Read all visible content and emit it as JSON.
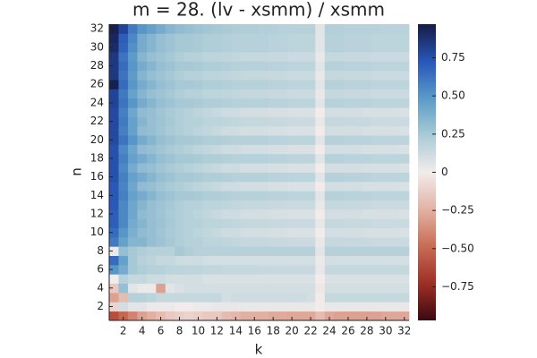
{
  "chart_data": {
    "type": "heatmap",
    "title": "m = 28. (lv - xsmm) / xsmm",
    "xlabel": "k",
    "ylabel": "n",
    "x": [
      1,
      2,
      3,
      4,
      5,
      6,
      7,
      8,
      9,
      10,
      11,
      12,
      13,
      14,
      15,
      16,
      17,
      18,
      19,
      20,
      21,
      22,
      23,
      24,
      25,
      26,
      27,
      28,
      29,
      30,
      31,
      32
    ],
    "y": [
      1,
      2,
      3,
      4,
      5,
      6,
      7,
      8,
      9,
      10,
      11,
      12,
      13,
      14,
      15,
      16,
      17,
      18,
      19,
      20,
      21,
      22,
      23,
      24,
      25,
      26,
      27,
      28,
      29,
      30,
      31,
      32
    ],
    "xlim": [
      0.5,
      32.5
    ],
    "ylim": [
      0.5,
      32.5
    ],
    "xticks": [
      2,
      4,
      6,
      8,
      10,
      12,
      14,
      16,
      18,
      20,
      22,
      24,
      26,
      28,
      30,
      32
    ],
    "yticks": [
      2,
      4,
      6,
      8,
      10,
      12,
      14,
      16,
      18,
      20,
      22,
      24,
      26,
      28,
      30,
      32
    ],
    "colorbar": {
      "lim": [
        -0.97,
        0.97
      ],
      "ticks": [
        {
          "value": -0.75,
          "label": "−0.75"
        },
        {
          "value": -0.5,
          "label": "−0.50"
        },
        {
          "value": -0.25,
          "label": "−0.25"
        },
        0,
        0.25,
        {
          "value": 0.5,
          "label": "0.50"
        },
        0.75
      ]
    },
    "colormap": [
      "#3c0911",
      "#9e2f25",
      "#c86c55",
      "#e2b2a4",
      "#f1eceb",
      "#a9cbd6",
      "#5a9ac8",
      "#2756b8",
      "#171b45"
    ],
    "values": [
      [
        -0.6,
        -0.5,
        -0.4,
        -0.3,
        -0.25,
        -0.2,
        -0.15,
        -0.12,
        -0.1,
        -0.12,
        -0.15,
        -0.15,
        -0.2,
        -0.22,
        -0.25,
        -0.25,
        -0.25,
        -0.27,
        -0.27,
        -0.28,
        -0.28,
        -0.28,
        -0.2,
        -0.28,
        -0.3,
        -0.3,
        -0.3,
        -0.3,
        -0.3,
        -0.28,
        -0.28,
        -0.28
      ],
      [
        -0.1,
        0.1,
        0.05,
        0.05,
        0.02,
        0.02,
        0.02,
        0.0,
        0.0,
        0.02,
        0.02,
        0.03,
        0.03,
        0.03,
        0.03,
        0.03,
        0.03,
        0.03,
        0.03,
        0.03,
        0.03,
        0.03,
        0.0,
        0.03,
        0.03,
        0.03,
        0.03,
        0.03,
        0.03,
        0.03,
        0.03,
        0.03
      ],
      [
        -0.3,
        -0.2,
        0.2,
        0.2,
        0.18,
        0.15,
        0.15,
        0.15,
        0.15,
        0.15,
        0.15,
        0.15,
        0.1,
        0.12,
        0.12,
        0.12,
        0.12,
        0.12,
        0.12,
        0.12,
        0.12,
        0.1,
        0.0,
        0.15,
        0.15,
        0.15,
        0.15,
        0.15,
        0.15,
        0.15,
        0.15,
        0.15
      ],
      [
        -0.15,
        0.3,
        0.05,
        0.02,
        0.02,
        -0.3,
        0.05,
        0.08,
        0.1,
        0.1,
        0.1,
        0.1,
        0.1,
        0.1,
        0.1,
        0.1,
        0.1,
        0.1,
        0.1,
        0.1,
        0.1,
        0.1,
        -0.02,
        0.1,
        0.1,
        0.1,
        0.1,
        0.1,
        0.1,
        0.1,
        0.1,
        0.1
      ],
      [
        0.0,
        0.2,
        0.15,
        0.15,
        0.12,
        0.12,
        0.1,
        0.1,
        0.1,
        0.1,
        0.08,
        0.08,
        0.08,
        0.08,
        0.08,
        0.08,
        0.08,
        0.08,
        0.08,
        0.08,
        0.08,
        0.08,
        0.0,
        0.08,
        0.08,
        0.08,
        0.08,
        0.08,
        0.08,
        0.08,
        0.08,
        0.08
      ],
      [
        0.5,
        0.4,
        0.25,
        0.22,
        0.2,
        0.2,
        0.18,
        0.18,
        0.17,
        0.17,
        0.16,
        0.16,
        0.15,
        0.15,
        0.15,
        0.15,
        0.14,
        0.14,
        0.14,
        0.14,
        0.14,
        0.14,
        0.03,
        0.15,
        0.15,
        0.15,
        0.15,
        0.15,
        0.15,
        0.15,
        0.15,
        0.15
      ],
      [
        0.65,
        0.45,
        0.25,
        0.2,
        0.18,
        0.15,
        0.15,
        0.12,
        0.12,
        0.12,
        0.1,
        0.1,
        0.1,
        0.1,
        0.1,
        0.1,
        0.1,
        0.1,
        0.1,
        0.1,
        0.1,
        0.1,
        0.02,
        0.1,
        0.1,
        0.1,
        0.1,
        0.1,
        0.1,
        0.1,
        0.1,
        0.1
      ],
      [
        0.02,
        0.3,
        0.25,
        0.22,
        0.2,
        0.2,
        0.2,
        0.25,
        0.22,
        0.2,
        0.2,
        0.2,
        0.2,
        0.2,
        0.2,
        0.2,
        0.2,
        0.2,
        0.2,
        0.2,
        0.2,
        0.2,
        0.05,
        0.2,
        0.2,
        0.2,
        0.2,
        0.2,
        0.2,
        0.2,
        0.2,
        0.2
      ],
      [
        0.6,
        0.45,
        0.35,
        0.35,
        0.3,
        0.28,
        0.25,
        0.22,
        0.2,
        0.2,
        0.18,
        0.18,
        0.17,
        0.16,
        0.15,
        0.15,
        0.15,
        0.14,
        0.14,
        0.13,
        0.13,
        0.13,
        0.03,
        0.15,
        0.15,
        0.14,
        0.14,
        0.14,
        0.13,
        0.13,
        0.13,
        0.13
      ],
      [
        0.65,
        0.5,
        0.38,
        0.32,
        0.3,
        0.27,
        0.24,
        0.22,
        0.2,
        0.18,
        0.16,
        0.14,
        0.12,
        0.12,
        0.1,
        0.1,
        0.1,
        0.09,
        0.09,
        0.08,
        0.08,
        0.08,
        0.0,
        0.1,
        0.1,
        0.1,
        0.1,
        0.09,
        0.09,
        0.09,
        0.09,
        0.08
      ],
      [
        0.7,
        0.55,
        0.4,
        0.35,
        0.3,
        0.28,
        0.25,
        0.22,
        0.2,
        0.2,
        0.18,
        0.18,
        0.17,
        0.16,
        0.15,
        0.15,
        0.15,
        0.14,
        0.14,
        0.13,
        0.13,
        0.13,
        0.03,
        0.15,
        0.15,
        0.14,
        0.14,
        0.14,
        0.13,
        0.13,
        0.13,
        0.13
      ],
      [
        0.7,
        0.55,
        0.42,
        0.32,
        0.3,
        0.27,
        0.24,
        0.22,
        0.2,
        0.18,
        0.16,
        0.14,
        0.12,
        0.12,
        0.1,
        0.1,
        0.1,
        0.09,
        0.09,
        0.08,
        0.08,
        0.08,
        0.0,
        0.1,
        0.1,
        0.1,
        0.1,
        0.09,
        0.09,
        0.09,
        0.09,
        0.08
      ],
      [
        0.72,
        0.55,
        0.42,
        0.35,
        0.3,
        0.28,
        0.25,
        0.22,
        0.2,
        0.2,
        0.18,
        0.18,
        0.17,
        0.16,
        0.15,
        0.15,
        0.15,
        0.14,
        0.14,
        0.13,
        0.13,
        0.13,
        0.03,
        0.15,
        0.15,
        0.14,
        0.14,
        0.14,
        0.13,
        0.13,
        0.13,
        0.13
      ],
      [
        0.72,
        0.58,
        0.45,
        0.4,
        0.35,
        0.3,
        0.28,
        0.25,
        0.25,
        0.24,
        0.22,
        0.22,
        0.21,
        0.2,
        0.2,
        0.2,
        0.2,
        0.19,
        0.19,
        0.18,
        0.18,
        0.18,
        0.05,
        0.2,
        0.2,
        0.19,
        0.19,
        0.19,
        0.18,
        0.18,
        0.18,
        0.18
      ],
      [
        0.72,
        0.56,
        0.42,
        0.32,
        0.3,
        0.27,
        0.24,
        0.22,
        0.2,
        0.18,
        0.16,
        0.14,
        0.12,
        0.12,
        0.1,
        0.1,
        0.1,
        0.09,
        0.09,
        0.08,
        0.08,
        0.08,
        0.0,
        0.1,
        0.1,
        0.1,
        0.1,
        0.09,
        0.09,
        0.09,
        0.09,
        0.08
      ],
      [
        0.75,
        0.58,
        0.45,
        0.4,
        0.35,
        0.3,
        0.28,
        0.25,
        0.25,
        0.24,
        0.22,
        0.22,
        0.21,
        0.2,
        0.2,
        0.2,
        0.2,
        0.19,
        0.19,
        0.18,
        0.18,
        0.18,
        0.05,
        0.2,
        0.2,
        0.19,
        0.19,
        0.19,
        0.18,
        0.18,
        0.18,
        0.18
      ],
      [
        0.75,
        0.55,
        0.4,
        0.32,
        0.3,
        0.27,
        0.24,
        0.22,
        0.2,
        0.18,
        0.16,
        0.14,
        0.12,
        0.12,
        0.1,
        0.1,
        0.1,
        0.09,
        0.09,
        0.08,
        0.08,
        0.08,
        0.0,
        0.1,
        0.1,
        0.1,
        0.1,
        0.09,
        0.09,
        0.09,
        0.09,
        0.08
      ],
      [
        0.75,
        0.58,
        0.45,
        0.4,
        0.35,
        0.3,
        0.28,
        0.25,
        0.25,
        0.24,
        0.22,
        0.22,
        0.21,
        0.2,
        0.2,
        0.2,
        0.2,
        0.19,
        0.19,
        0.18,
        0.18,
        0.18,
        0.05,
        0.2,
        0.2,
        0.19,
        0.19,
        0.19,
        0.18,
        0.18,
        0.18,
        0.18
      ],
      [
        0.75,
        0.55,
        0.42,
        0.32,
        0.3,
        0.27,
        0.24,
        0.22,
        0.2,
        0.18,
        0.16,
        0.14,
        0.12,
        0.12,
        0.1,
        0.1,
        0.1,
        0.09,
        0.09,
        0.08,
        0.08,
        0.08,
        0.0,
        0.1,
        0.1,
        0.1,
        0.1,
        0.09,
        0.09,
        0.09,
        0.09,
        0.08
      ],
      [
        0.78,
        0.62,
        0.5,
        0.4,
        0.35,
        0.3,
        0.28,
        0.25,
        0.25,
        0.24,
        0.22,
        0.22,
        0.21,
        0.2,
        0.2,
        0.2,
        0.2,
        0.19,
        0.19,
        0.18,
        0.18,
        0.18,
        0.05,
        0.2,
        0.2,
        0.19,
        0.19,
        0.19,
        0.18,
        0.18,
        0.18,
        0.18
      ],
      [
        0.78,
        0.58,
        0.45,
        0.32,
        0.3,
        0.27,
        0.24,
        0.22,
        0.2,
        0.18,
        0.16,
        0.14,
        0.12,
        0.12,
        0.1,
        0.1,
        0.1,
        0.09,
        0.09,
        0.08,
        0.08,
        0.08,
        0.0,
        0.1,
        0.1,
        0.1,
        0.1,
        0.09,
        0.09,
        0.09,
        0.09,
        0.08
      ],
      [
        0.78,
        0.6,
        0.45,
        0.35,
        0.3,
        0.28,
        0.25,
        0.22,
        0.2,
        0.2,
        0.18,
        0.18,
        0.17,
        0.16,
        0.15,
        0.15,
        0.15,
        0.14,
        0.14,
        0.13,
        0.13,
        0.13,
        0.03,
        0.15,
        0.15,
        0.14,
        0.14,
        0.14,
        0.13,
        0.13,
        0.13,
        0.13
      ],
      [
        0.78,
        0.58,
        0.42,
        0.32,
        0.3,
        0.27,
        0.24,
        0.22,
        0.2,
        0.18,
        0.16,
        0.14,
        0.12,
        0.12,
        0.1,
        0.1,
        0.1,
        0.09,
        0.09,
        0.08,
        0.08,
        0.08,
        0.0,
        0.1,
        0.1,
        0.1,
        0.1,
        0.09,
        0.09,
        0.09,
        0.09,
        0.08
      ],
      [
        0.8,
        0.62,
        0.5,
        0.4,
        0.35,
        0.3,
        0.28,
        0.25,
        0.25,
        0.24,
        0.22,
        0.22,
        0.21,
        0.2,
        0.2,
        0.2,
        0.2,
        0.19,
        0.19,
        0.18,
        0.18,
        0.18,
        0.05,
        0.2,
        0.2,
        0.19,
        0.19,
        0.19,
        0.18,
        0.18,
        0.18,
        0.18
      ],
      [
        0.8,
        0.6,
        0.45,
        0.35,
        0.3,
        0.28,
        0.25,
        0.22,
        0.2,
        0.2,
        0.18,
        0.18,
        0.17,
        0.16,
        0.15,
        0.15,
        0.15,
        0.14,
        0.14,
        0.13,
        0.13,
        0.13,
        0.03,
        0.15,
        0.15,
        0.14,
        0.14,
        0.14,
        0.13,
        0.13,
        0.13,
        0.13
      ],
      [
        0.95,
        0.65,
        0.5,
        0.4,
        0.35,
        0.3,
        0.28,
        0.25,
        0.25,
        0.24,
        0.22,
        0.22,
        0.21,
        0.2,
        0.2,
        0.2,
        0.2,
        0.19,
        0.19,
        0.18,
        0.18,
        0.18,
        0.05,
        0.2,
        0.2,
        0.19,
        0.19,
        0.19,
        0.18,
        0.18,
        0.18,
        0.18
      ],
      [
        0.85,
        0.62,
        0.48,
        0.35,
        0.3,
        0.28,
        0.25,
        0.22,
        0.2,
        0.2,
        0.18,
        0.18,
        0.17,
        0.16,
        0.15,
        0.15,
        0.15,
        0.14,
        0.14,
        0.13,
        0.13,
        0.13,
        0.03,
        0.15,
        0.15,
        0.14,
        0.14,
        0.14,
        0.13,
        0.13,
        0.13,
        0.13
      ],
      [
        0.85,
        0.65,
        0.5,
        0.4,
        0.35,
        0.3,
        0.28,
        0.25,
        0.25,
        0.24,
        0.22,
        0.22,
        0.21,
        0.2,
        0.2,
        0.2,
        0.2,
        0.19,
        0.19,
        0.18,
        0.18,
        0.18,
        0.05,
        0.2,
        0.2,
        0.19,
        0.19,
        0.19,
        0.18,
        0.18,
        0.18,
        0.18
      ],
      [
        0.85,
        0.62,
        0.48,
        0.35,
        0.3,
        0.28,
        0.25,
        0.22,
        0.2,
        0.2,
        0.18,
        0.18,
        0.17,
        0.16,
        0.15,
        0.15,
        0.15,
        0.14,
        0.14,
        0.13,
        0.13,
        0.13,
        0.03,
        0.15,
        0.15,
        0.14,
        0.14,
        0.14,
        0.13,
        0.13,
        0.13,
        0.13
      ],
      [
        0.9,
        0.68,
        0.52,
        0.4,
        0.35,
        0.3,
        0.28,
        0.25,
        0.25,
        0.24,
        0.22,
        0.22,
        0.21,
        0.2,
        0.2,
        0.2,
        0.2,
        0.19,
        0.19,
        0.18,
        0.18,
        0.18,
        0.05,
        0.2,
        0.2,
        0.19,
        0.19,
        0.19,
        0.18,
        0.18,
        0.18,
        0.18
      ],
      [
        0.92,
        0.7,
        0.55,
        0.4,
        0.35,
        0.3,
        0.28,
        0.25,
        0.25,
        0.24,
        0.22,
        0.22,
        0.21,
        0.2,
        0.2,
        0.2,
        0.2,
        0.19,
        0.19,
        0.18,
        0.18,
        0.18,
        0.05,
        0.2,
        0.2,
        0.19,
        0.19,
        0.19,
        0.18,
        0.18,
        0.18,
        0.18
      ],
      [
        0.95,
        0.8,
        0.6,
        0.5,
        0.45,
        0.4,
        0.35,
        0.32,
        0.3,
        0.28,
        0.26,
        0.25,
        0.24,
        0.23,
        0.22,
        0.22,
        0.21,
        0.21,
        0.2,
        0.2,
        0.2,
        0.2,
        0.05,
        0.21,
        0.21,
        0.2,
        0.2,
        0.2,
        0.2,
        0.19,
        0.19,
        0.19
      ]
    ]
  }
}
